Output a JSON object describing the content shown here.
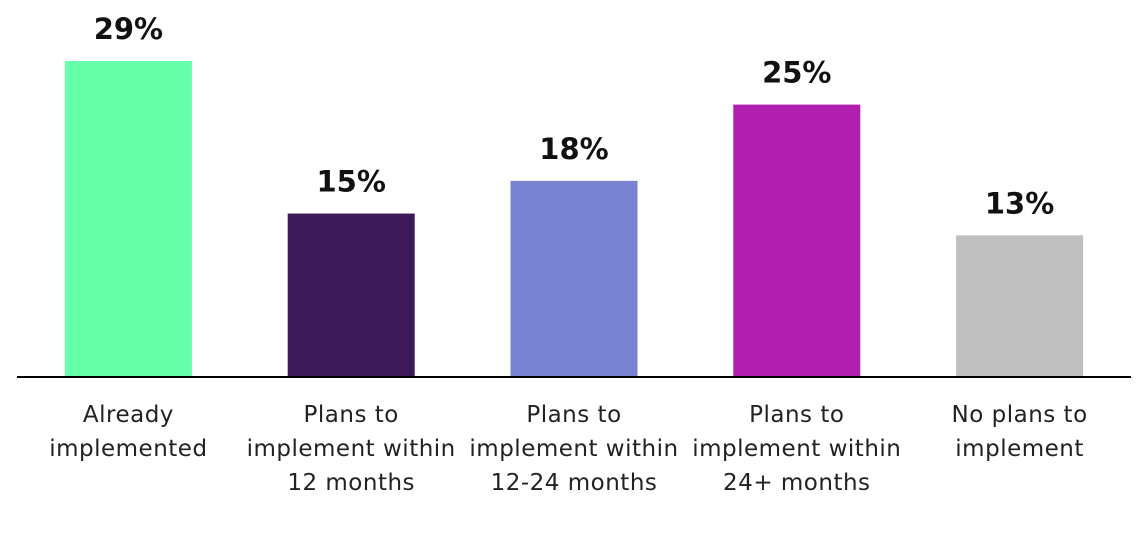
{
  "chart_data": {
    "type": "bar",
    "categories": [
      "Already implemented",
      "Plans to implement within 12 months",
      "Plans to implement within 12-24 months",
      "Plans to implement within 24+ months",
      "No plans to implement"
    ],
    "values": [
      29,
      15,
      18,
      25,
      13
    ],
    "value_labels": [
      "29%",
      "15%",
      "18%",
      "25%",
      "13%"
    ],
    "colors": [
      "#66ffaa",
      "#3d1b5a",
      "#7983d1",
      "#b01fae",
      "#bfbfbf"
    ]
  }
}
